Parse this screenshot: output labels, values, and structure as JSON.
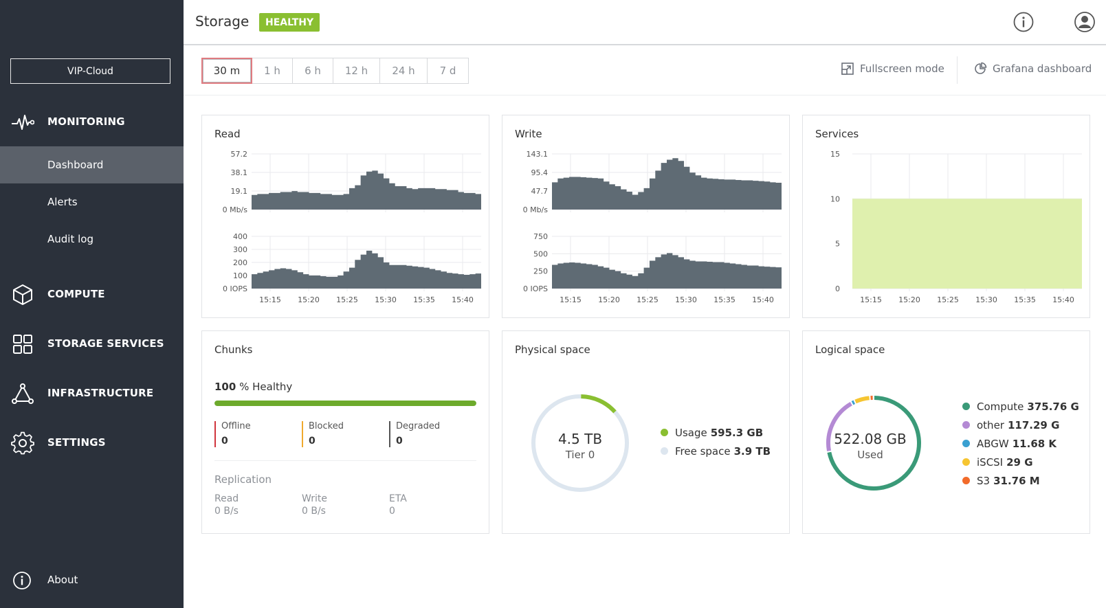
{
  "sidebar": {
    "cluster_name": "VIP-Cloud",
    "sections": [
      {
        "label": "MONITORING",
        "icon": "pulse-icon"
      },
      {
        "label": "COMPUTE",
        "icon": "cube-icon"
      },
      {
        "label": "STORAGE SERVICES",
        "icon": "grid-icon"
      },
      {
        "label": "INFRASTRUCTURE",
        "icon": "network-icon"
      },
      {
        "label": "SETTINGS",
        "icon": "gear-icon"
      }
    ],
    "monitoring_items": [
      {
        "label": "Dashboard",
        "active": true
      },
      {
        "label": "Alerts",
        "active": false
      },
      {
        "label": "Audit log",
        "active": false
      }
    ],
    "about_label": "About"
  },
  "header": {
    "title": "Storage",
    "status_badge": "HEALTHY",
    "status_color": "#8abf31"
  },
  "toolbar": {
    "ranges": [
      "30 m",
      "1 h",
      "6 h",
      "12 h",
      "24 h",
      "7 d"
    ],
    "selected_range": "30 m",
    "fullscreen_label": "Fullscreen mode",
    "grafana_label": "Grafana dashboard"
  },
  "chart_data": [
    {
      "id": "read",
      "title": "Read",
      "type": "area",
      "x_ticks": [
        "15:15",
        "15:20",
        "15:25",
        "15:30",
        "15:35",
        "15:40"
      ],
      "subcharts": [
        {
          "y_ticks": [
            "0 Mb/s",
            "19.1",
            "38.1",
            "57.2"
          ],
          "ylim": [
            0,
            57.2
          ],
          "values": [
            15,
            16,
            16,
            17,
            17,
            18,
            18,
            19,
            18,
            18,
            17,
            17,
            16,
            16,
            15,
            15,
            16,
            22,
            25,
            35,
            39,
            40,
            37,
            32,
            27,
            24,
            24,
            22,
            21,
            22,
            22,
            22,
            21,
            21,
            20,
            20,
            18,
            17,
            17,
            16
          ]
        },
        {
          "y_ticks": [
            "0 IOPS",
            "100",
            "200",
            "300",
            "400"
          ],
          "ylim": [
            0,
            400
          ],
          "values": [
            110,
            120,
            130,
            140,
            150,
            155,
            150,
            140,
            125,
            110,
            100,
            100,
            95,
            90,
            90,
            100,
            130,
            160,
            220,
            260,
            290,
            270,
            240,
            200,
            180,
            180,
            180,
            175,
            170,
            165,
            160,
            150,
            140,
            130,
            120,
            115,
            110,
            105,
            110,
            115
          ]
        }
      ]
    },
    {
      "id": "write",
      "title": "Write",
      "type": "area",
      "x_ticks": [
        "15:15",
        "15:20",
        "15:25",
        "15:30",
        "15:35",
        "15:40"
      ],
      "subcharts": [
        {
          "y_ticks": [
            "0 Mb/s",
            "47.7",
            "95.4",
            "143.1"
          ],
          "ylim": [
            0,
            143.1
          ],
          "values": [
            70,
            80,
            82,
            84,
            84,
            83,
            82,
            81,
            80,
            72,
            65,
            60,
            52,
            46,
            38,
            45,
            55,
            80,
            100,
            120,
            128,
            132,
            125,
            110,
            95,
            88,
            82,
            80,
            79,
            78,
            77,
            77,
            76,
            75,
            75,
            74,
            73,
            72,
            70,
            69
          ]
        },
        {
          "y_ticks": [
            "0 IOPS",
            "250",
            "500",
            "750"
          ],
          "ylim": [
            0,
            750
          ],
          "values": [
            340,
            360,
            370,
            375,
            370,
            360,
            350,
            340,
            320,
            300,
            270,
            250,
            220,
            200,
            180,
            220,
            300,
            400,
            450,
            490,
            510,
            480,
            450,
            420,
            400,
            390,
            390,
            385,
            380,
            380,
            370,
            360,
            350,
            340,
            330,
            330,
            320,
            315,
            310,
            305
          ]
        }
      ]
    },
    {
      "id": "services",
      "title": "Services",
      "type": "area",
      "x_ticks": [
        "15:15",
        "15:20",
        "15:25",
        "15:30",
        "15:35",
        "15:40"
      ],
      "y_ticks": [
        "0",
        "5",
        "10",
        "15"
      ],
      "ylim": [
        0,
        15
      ],
      "values": [
        10,
        10
      ]
    }
  ],
  "chunks": {
    "title": "Chunks",
    "healthy_percent": "100",
    "healthy_suffix": "% Healthy",
    "healthy_fraction": 1.0,
    "stats": [
      {
        "label": "Offline",
        "value": "0",
        "color": "#d0343c"
      },
      {
        "label": "Blocked",
        "value": "0",
        "color": "#f0a92e"
      },
      {
        "label": "Degraded",
        "value": "0",
        "color": "#555555"
      }
    ],
    "replication_title": "Replication",
    "replication": [
      {
        "label": "Read",
        "value": "0 B/s"
      },
      {
        "label": "Write",
        "value": "0 B/s"
      },
      {
        "label": "ETA",
        "value": "0"
      }
    ]
  },
  "physical_space": {
    "title": "Physical space",
    "center_value": "4.5 TB",
    "center_label": "Tier 0",
    "usage_fraction": 0.13,
    "legend": [
      {
        "label": "Usage",
        "value": "595.3 GB",
        "color": "#8abf31"
      },
      {
        "label": "Free space",
        "value": "3.9 TB",
        "color": "#dde6ef"
      }
    ]
  },
  "logical_space": {
    "title": "Logical space",
    "center_value": "522.08 GB",
    "center_label": "Used",
    "legend": [
      {
        "label": "Compute",
        "value": "375.76 G",
        "color": "#3a9a78",
        "fraction": 0.72
      },
      {
        "label": "other",
        "value": "117.29 G",
        "color": "#b48ad4",
        "fraction": 0.2
      },
      {
        "label": "ABGW",
        "value": "11.68 K",
        "color": "#3aa0d1",
        "fraction": 0.012
      },
      {
        "label": "iSCSI",
        "value": "29 G",
        "color": "#f6c531",
        "fraction": 0.055
      },
      {
        "label": "S3",
        "value": "31.76 M",
        "color": "#f26b2a",
        "fraction": 0.012
      }
    ]
  }
}
